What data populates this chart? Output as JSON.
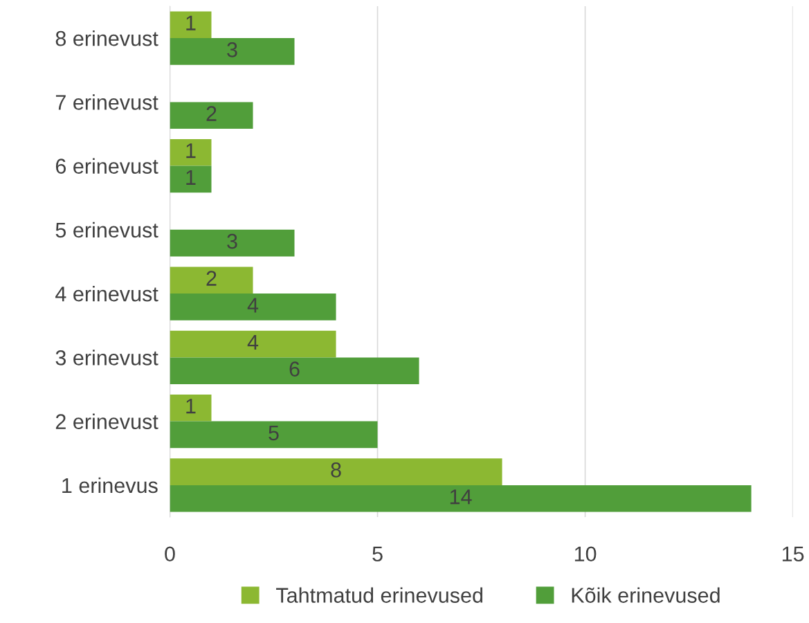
{
  "chart_data": {
    "type": "bar",
    "orientation": "horizontal",
    "categories": [
      "8 erinevust",
      "7 erinevust",
      "6 erinevust",
      "5 erinevust",
      "4 erinevust",
      "3 erinevust",
      "2 erinevust",
      "1 erinevus"
    ],
    "series": [
      {
        "name": "Tahtmatud erinevused",
        "color": "#8cb832",
        "values": [
          1,
          null,
          1,
          null,
          2,
          4,
          1,
          8
        ]
      },
      {
        "name": "Kõik erinevused",
        "color": "#519e3a",
        "values": [
          3,
          2,
          1,
          3,
          4,
          6,
          5,
          14
        ]
      }
    ],
    "xlim": [
      0,
      15
    ],
    "xticks": [
      0,
      5,
      10,
      15
    ],
    "grid": "x",
    "legend": "bottom",
    "data_labels": true
  }
}
